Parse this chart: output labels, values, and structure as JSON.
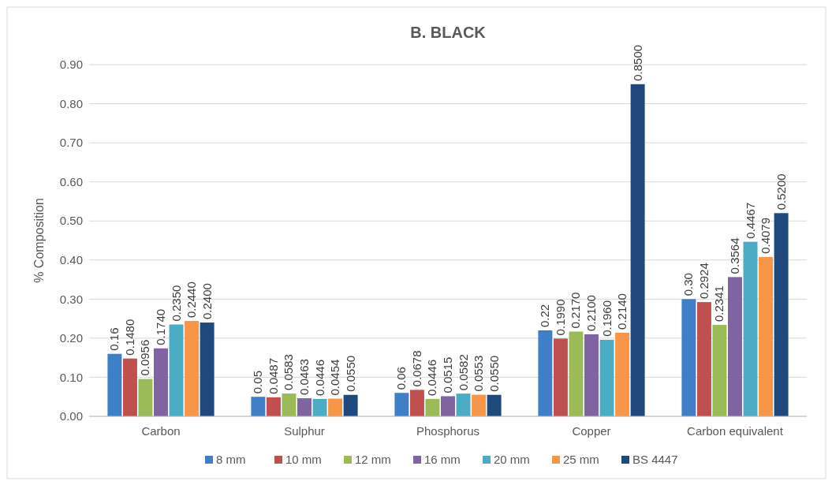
{
  "chart_data": {
    "type": "bar",
    "title": "B. BLACK",
    "ylabel": "% Composition",
    "categories": [
      "Carbon",
      "Sulphur",
      "Phosphorus",
      "Copper",
      "Carbon equivalent"
    ],
    "series": [
      {
        "name": "8 mm",
        "color": "#3f7fc8",
        "values": [
          0.16,
          0.05,
          0.06,
          0.22,
          0.3
        ],
        "value_labels": [
          "0.16",
          "0.05",
          "0.06",
          "0.22",
          "0.30"
        ]
      },
      {
        "name": "10 mm",
        "color": "#c0504d",
        "values": [
          0.148,
          0.0487,
          0.0678,
          0.199,
          0.2924
        ],
        "value_labels": [
          "0.1480",
          "0.0487",
          "0.0678",
          "0.1990",
          "0.2924"
        ]
      },
      {
        "name": "12 mm",
        "color": "#9bbb59",
        "values": [
          0.0956,
          0.0583,
          0.0446,
          0.217,
          0.2341
        ],
        "value_labels": [
          "0.0956",
          "0.0583",
          "0.0446",
          "0.2170",
          "0.2341"
        ]
      },
      {
        "name": "16 mm",
        "color": "#8064a2",
        "values": [
          0.174,
          0.0463,
          0.0515,
          0.21,
          0.3564
        ],
        "value_labels": [
          "0.1740",
          "0.0463",
          "0.0515",
          "0.2100",
          "0.3564"
        ]
      },
      {
        "name": "20 mm",
        "color": "#4bacc6",
        "values": [
          0.235,
          0.0446,
          0.0582,
          0.196,
          0.4467
        ],
        "value_labels": [
          "0.2350",
          "0.0446",
          "0.0582",
          "0.1960",
          "0.4467"
        ]
      },
      {
        "name": "25 mm",
        "color": "#f79646",
        "values": [
          0.244,
          0.0454,
          0.0553,
          0.214,
          0.4079
        ],
        "value_labels": [
          "0.2440",
          "0.0454",
          "0.0553",
          "0.2140",
          "0.4079"
        ]
      },
      {
        "name": "BS 4447",
        "color": "#1f497d",
        "values": [
          0.24,
          0.055,
          0.055,
          0.85,
          0.52
        ],
        "value_labels": [
          "0.2400",
          "0.0550",
          "0.0550",
          "0.8500",
          "0.5200"
        ]
      }
    ],
    "ylim": [
      0,
      0.9
    ],
    "yticks": [
      {
        "value": 0,
        "label": "0.00"
      },
      {
        "value": 0.1,
        "label": "0.10"
      },
      {
        "value": 0.2,
        "label": "0.20"
      },
      {
        "value": 0.3,
        "label": "0.30"
      },
      {
        "value": 0.4,
        "label": "0.40"
      },
      {
        "value": 0.5,
        "label": "0.50"
      },
      {
        "value": 0.6,
        "label": "0.60"
      },
      {
        "value": 0.7,
        "label": "0.70"
      },
      {
        "value": 0.8,
        "label": "0.80"
      },
      {
        "value": 0.9,
        "label": "0.90"
      }
    ],
    "grid": true,
    "legend": "bottom"
  }
}
